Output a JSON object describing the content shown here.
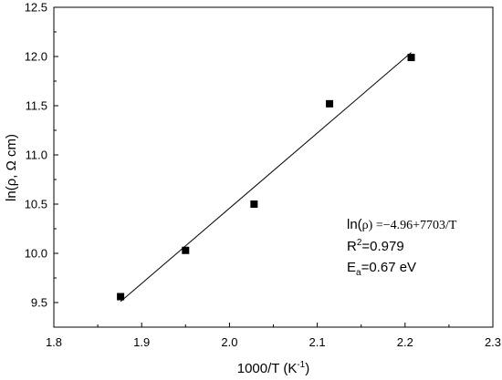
{
  "chart_data": {
    "type": "scatter",
    "title": "",
    "xlabel": "1000/T (K",
    "xlabel_sup": "-1",
    "xlabel_end": ")",
    "ylabel": "ln(ρ, Ω cm)",
    "xlim": [
      1.8,
      2.3
    ],
    "ylim": [
      9.25,
      12.5
    ],
    "x_ticks": [
      1.8,
      1.9,
      2.0,
      2.1,
      2.2,
      2.3
    ],
    "x_tick_labels": [
      "1.8",
      "1.9",
      "2.0",
      "2.1",
      "2.2",
      "2.3"
    ],
    "y_ticks": [
      9.5,
      10.0,
      10.5,
      11.0,
      11.5,
      12.0,
      12.5
    ],
    "y_tick_labels": [
      "9.5",
      "10.0",
      "10.5",
      "11.0",
      "11.5",
      "12.0",
      "12.5"
    ],
    "grid": false,
    "series": [
      {
        "marker": "square",
        "color": "#000000",
        "x": [
          1.876,
          1.95,
          2.028,
          2.114,
          2.207
        ],
        "y": [
          9.56,
          10.03,
          10.5,
          11.52,
          11.99
        ]
      }
    ],
    "fit_line": {
      "x": [
        1.876,
        2.207
      ],
      "y": [
        9.51,
        12.04
      ],
      "color": "#000000"
    },
    "annotation": {
      "equation_prefix": "ln(",
      "equation_rho": "ρ",
      "equation_rest": ") =−4.96+7703/T",
      "r2_prefix": "R",
      "r2_sup": "2",
      "r2_rest": "=0.979",
      "ea_prefix": "E",
      "ea_sub": "a",
      "ea_rest": "=0.67 eV"
    }
  }
}
